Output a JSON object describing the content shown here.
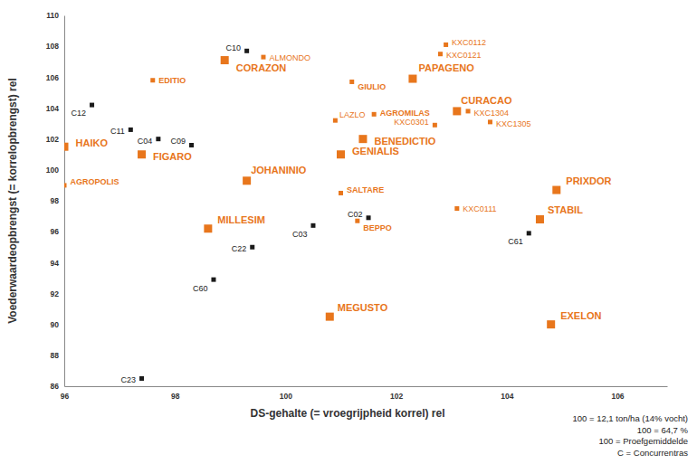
{
  "chart_data": {
    "type": "scatter",
    "x_label": "DS-gehalte (= vroegrijpheid korrel) rel",
    "y_label": "Voederwaardeopbrengst (= korrelopbrengst) rel",
    "annotations": [
      "100 = 12,1 ton/ha (14% vocht)",
      "100 = 64,7 %",
      "100 = Proefgemiddelde",
      "C = Concurrentras"
    ],
    "xlim": [
      96,
      106.9
    ],
    "xticks": [
      96,
      98,
      100,
      102,
      104,
      106
    ],
    "ylim": [
      86,
      110
    ],
    "yticks": [
      86,
      88,
      90,
      92,
      94,
      96,
      98,
      100,
      102,
      104,
      106,
      108,
      110
    ],
    "grid": false,
    "series": [
      {
        "color": "#e8761c",
        "marker": "square-large",
        "labels": [
          "HAIKO",
          "FIGARO",
          "CORAZON",
          "PAPAGENO",
          "CURACAO",
          "BENEDICTIO",
          "GENIALIS",
          "JOHANINIO",
          "MILLESIM",
          "MEGUSTO",
          "PRIXDOR",
          "STABIL",
          "EXELON"
        ],
        "x": [
          96.0,
          97.4,
          98.9,
          102.3,
          103.1,
          101.4,
          101.0,
          99.3,
          98.6,
          100.8,
          104.9,
          104.6,
          104.8
        ],
        "values": [
          101.5,
          101.0,
          107.1,
          105.9,
          103.8,
          102.0,
          101.0,
          99.3,
          96.2,
          90.5,
          98.7,
          96.8,
          90.0
        ]
      },
      {
        "color": "#e8761c",
        "marker": "square",
        "labels": [
          "AGROPOLIS",
          "EDITIO",
          "GIULIO",
          "AGROMILAS",
          "SALTARE",
          "BEPPO"
        ],
        "x": [
          96.0,
          97.6,
          101.2,
          101.6,
          101.0,
          101.3
        ],
        "values": [
          99.0,
          105.8,
          105.7,
          103.6,
          98.5,
          96.7
        ]
      },
      {
        "color": "#e8761c",
        "marker": "square",
        "labels": [
          "ALMONDO",
          "KXC0112",
          "KXC0121",
          "LAZLO",
          "KXC0301",
          "KXC1304",
          "KXC1305",
          "KXC0111"
        ],
        "x": [
          99.6,
          102.9,
          102.8,
          100.9,
          102.7,
          103.3,
          103.7,
          103.1
        ],
        "values": [
          107.3,
          108.1,
          107.5,
          103.2,
          102.9,
          103.8,
          103.1,
          97.5
        ]
      },
      {
        "color": "#1a1a1a",
        "marker": "square",
        "labels": [
          "C10",
          "C12",
          "C11",
          "C04",
          "C09",
          "C02",
          "C03",
          "C22",
          "C60",
          "C61",
          "C23"
        ],
        "x": [
          99.3,
          96.5,
          97.2,
          97.7,
          98.3,
          101.5,
          100.5,
          99.4,
          98.7,
          104.4,
          97.4
        ],
        "values": [
          107.7,
          104.2,
          102.6,
          102.0,
          101.6,
          96.9,
          96.4,
          95.0,
          92.9,
          95.9,
          86.5
        ]
      }
    ]
  }
}
